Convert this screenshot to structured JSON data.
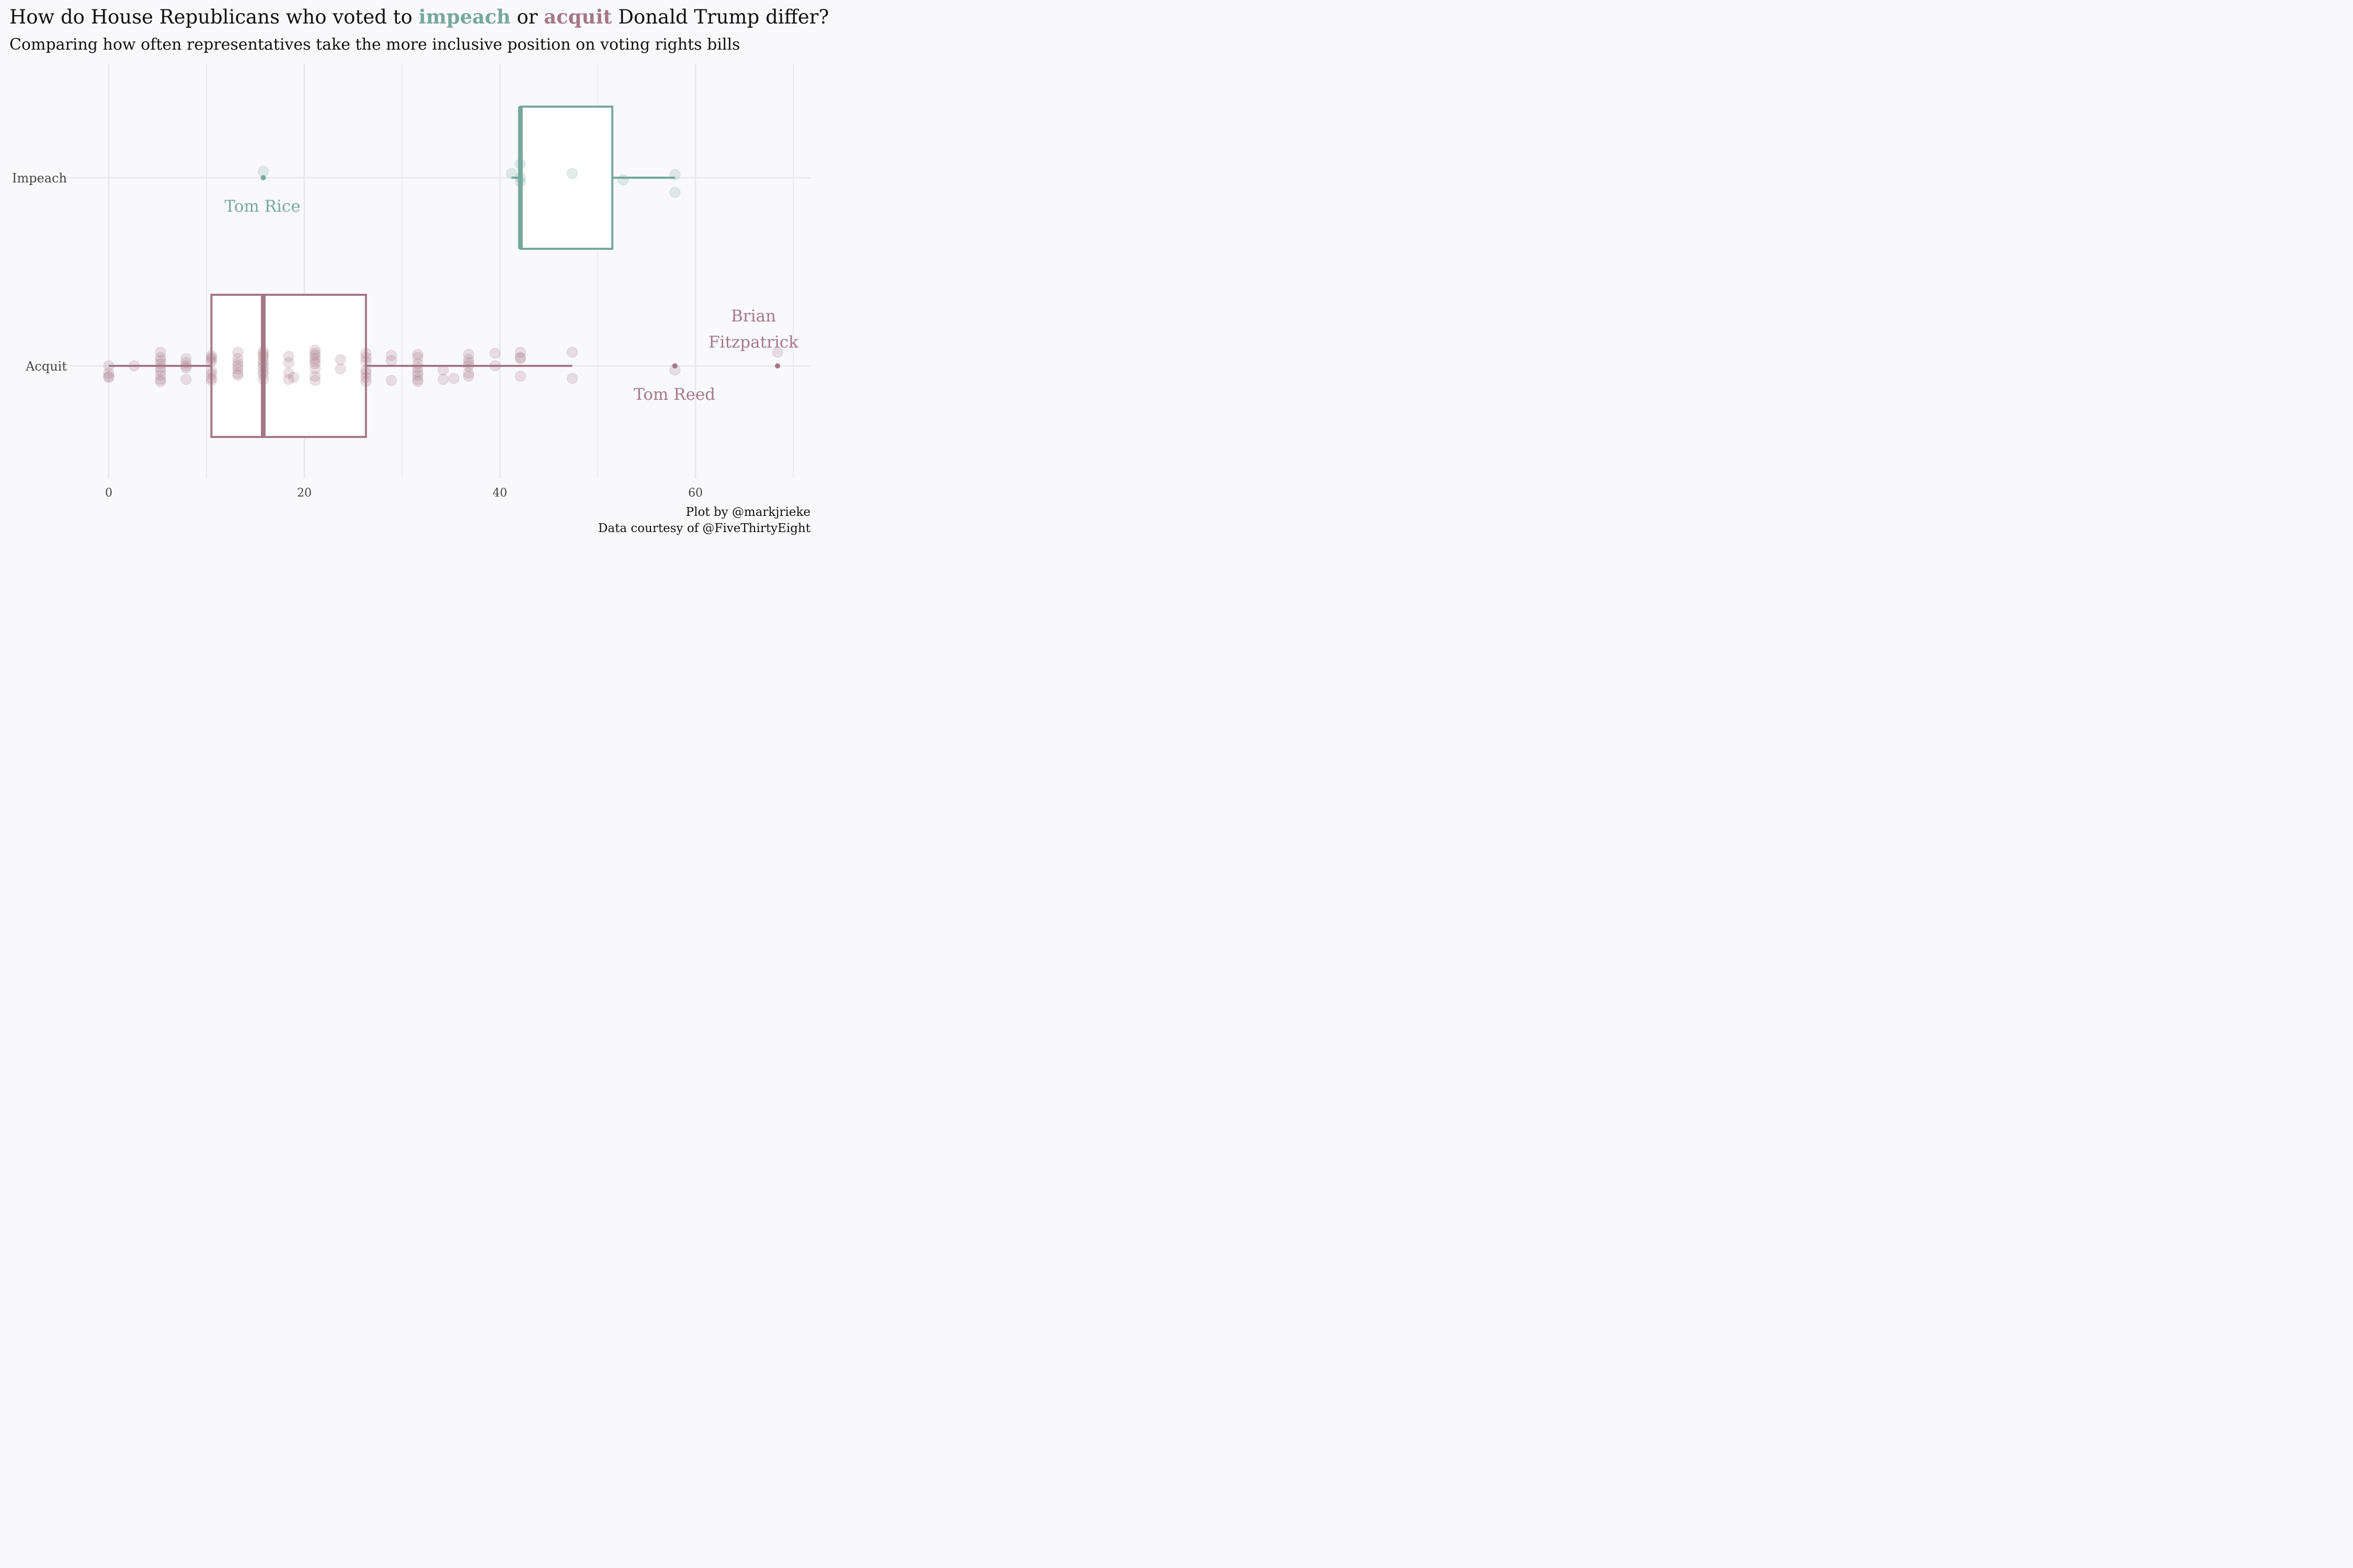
{
  "title": {
    "prefix": "How do House Republicans who voted to ",
    "impeach_word": "impeach",
    "middle": " or ",
    "acquit_word": "acquit",
    "suffix": " Donald Trump differ?"
  },
  "subtitle": "Comparing how often representatives take the more inclusive position on voting rights bills",
  "caption": {
    "line1": "Plot by @markjrieke",
    "line2": "Data courtesy of @FiveThirtyEight"
  },
  "colors": {
    "impeach": "#77a89c",
    "acquit": "#a57886",
    "background": "#f9f9fb",
    "grid": "#e8e8ec"
  },
  "chart_data": {
    "type": "boxplot",
    "orientation": "horizontal",
    "xlim": [
      -5,
      72
    ],
    "x_ticks": [
      0,
      20,
      40,
      60
    ],
    "categories": [
      "Impeach",
      "Acquit"
    ],
    "series": [
      {
        "name": "Impeach",
        "color_key": "impeach",
        "box": {
          "whisker_low": 41.2,
          "q1": 42.1,
          "median": 42.1,
          "q3": 51.5,
          "whisker_high": 57.9
        },
        "outliers": [
          15.8
        ],
        "points": [
          [
            15.8,
            0.06
          ],
          [
            41.2,
            0.04
          ],
          [
            42.1,
            0.13
          ],
          [
            42.1,
            -0.04
          ],
          [
            42.1,
            0.0
          ],
          [
            47.4,
            0.04
          ],
          [
            52.6,
            -0.02
          ],
          [
            57.9,
            0.03
          ],
          [
            57.9,
            -0.14
          ]
        ]
      },
      {
        "name": "Acquit",
        "color_key": "acquit",
        "box": {
          "whisker_low": 0,
          "q1": 10.5,
          "median": 15.8,
          "q3": 26.3,
          "whisker_high": 47.4
        },
        "outliers": [
          57.9,
          68.4
        ],
        "points": [
          [
            0,
            0.0
          ],
          [
            0,
            -0.07
          ],
          [
            0,
            -0.11
          ],
          [
            0,
            -0.1
          ],
          [
            2.6,
            0.0
          ],
          [
            5.3,
            0.13
          ],
          [
            5.3,
            0.08
          ],
          [
            5.3,
            0.05
          ],
          [
            5.3,
            0.02
          ],
          [
            5.3,
            -0.02
          ],
          [
            5.3,
            -0.05
          ],
          [
            5.3,
            -0.09
          ],
          [
            5.3,
            -0.13
          ],
          [
            5.3,
            -0.15
          ],
          [
            7.9,
            0.07
          ],
          [
            7.9,
            0.03
          ],
          [
            7.9,
            0.0
          ],
          [
            7.9,
            -0.02
          ],
          [
            7.9,
            -0.13
          ],
          [
            10.5,
            0.1
          ],
          [
            10.5,
            0.08
          ],
          [
            10.5,
            0.06
          ],
          [
            10.5,
            0.04
          ],
          [
            10.5,
            -0.05
          ],
          [
            10.5,
            -0.08
          ],
          [
            10.5,
            -0.12
          ],
          [
            10.5,
            -0.14
          ],
          [
            13.2,
            0.13
          ],
          [
            13.2,
            0.07
          ],
          [
            13.2,
            0.03
          ],
          [
            13.2,
            0.0
          ],
          [
            13.2,
            -0.03
          ],
          [
            13.2,
            -0.07
          ],
          [
            13.2,
            -0.09
          ],
          [
            15.8,
            0.14
          ],
          [
            15.8,
            0.11
          ],
          [
            15.8,
            0.09
          ],
          [
            15.8,
            0.05
          ],
          [
            15.8,
            0.02
          ],
          [
            15.8,
            -0.01
          ],
          [
            15.8,
            -0.05
          ],
          [
            15.8,
            -0.08
          ],
          [
            15.8,
            -0.13
          ],
          [
            18.4,
            0.09
          ],
          [
            18.4,
            0.03
          ],
          [
            18.4,
            -0.07
          ],
          [
            18.4,
            -0.13
          ],
          [
            18.9,
            -0.11
          ],
          [
            21.1,
            0.15
          ],
          [
            21.1,
            0.12
          ],
          [
            21.1,
            0.1
          ],
          [
            21.1,
            0.07
          ],
          [
            21.1,
            0.04
          ],
          [
            21.1,
            0.02
          ],
          [
            21.1,
            -0.03
          ],
          [
            21.1,
            -0.1
          ],
          [
            21.1,
            -0.14
          ],
          [
            23.7,
            0.06
          ],
          [
            23.7,
            -0.03
          ],
          [
            26.3,
            0.12
          ],
          [
            26.3,
            0.08
          ],
          [
            26.3,
            0.04
          ],
          [
            26.3,
            -0.04
          ],
          [
            26.3,
            -0.07
          ],
          [
            26.3,
            -0.11
          ],
          [
            26.3,
            -0.15
          ],
          [
            28.9,
            0.1
          ],
          [
            28.9,
            0.05
          ],
          [
            28.9,
            -0.14
          ],
          [
            31.6,
            0.11
          ],
          [
            31.6,
            0.08
          ],
          [
            31.6,
            0.02
          ],
          [
            31.6,
            -0.02
          ],
          [
            31.6,
            -0.06
          ],
          [
            31.6,
            -0.09
          ],
          [
            31.6,
            -0.13
          ],
          [
            31.6,
            -0.15
          ],
          [
            34.2,
            -0.04
          ],
          [
            34.2,
            -0.13
          ],
          [
            35.3,
            -0.12
          ],
          [
            36.8,
            0.11
          ],
          [
            36.8,
            0.06
          ],
          [
            36.8,
            0.03
          ],
          [
            36.8,
            0.0
          ],
          [
            36.8,
            -0.07
          ],
          [
            36.8,
            -0.1
          ],
          [
            39.5,
            0.12
          ],
          [
            39.5,
            0.0
          ],
          [
            42.1,
            0.13
          ],
          [
            42.1,
            0.07
          ],
          [
            42.1,
            0.08
          ],
          [
            42.1,
            -0.1
          ],
          [
            47.4,
            0.13
          ],
          [
            47.4,
            -0.12
          ],
          [
            57.9,
            -0.04
          ],
          [
            68.4,
            0.13
          ]
        ]
      }
    ],
    "annotations": [
      {
        "series": "Impeach",
        "lines": [
          "Tom Rice"
        ]
      },
      {
        "series": "Acquit",
        "lines": [
          "Brian",
          "Fitzpatrick"
        ]
      },
      {
        "series": "Acquit",
        "lines": [
          "Tom Reed"
        ]
      }
    ]
  }
}
